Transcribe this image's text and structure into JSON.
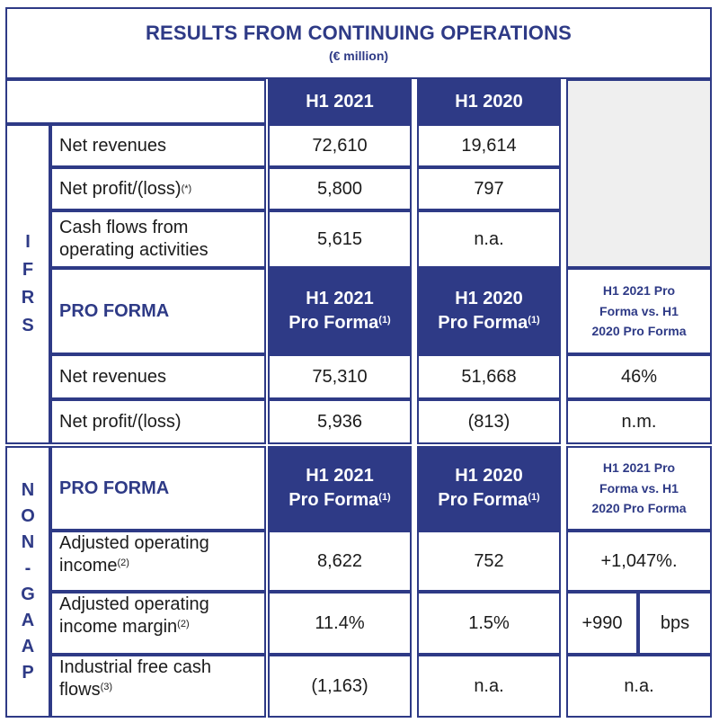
{
  "title": "RESULTS FROM CONTINUING OPERATIONS",
  "subtitle": "(€ million)",
  "headers": {
    "h1_2021": "H1 2021",
    "h1_2020": "H1 2020"
  },
  "side_labels": {
    "ifrs": [
      "I",
      "F",
      "R",
      "S"
    ],
    "nongaap": [
      "N",
      "O",
      "N",
      "-",
      "G",
      "A",
      "A",
      "P"
    ]
  },
  "ifrs_rows": [
    {
      "label": "Net revenues",
      "note": "",
      "v2021": "72,610",
      "v2020": "19,614"
    },
    {
      "label": "Net profit/(loss)",
      "note": "(*)",
      "v2021": "5,800",
      "v2020": "797"
    },
    {
      "label": "Cash flows from operating activities",
      "note": "",
      "v2021": "5,615",
      "v2020": "n.a."
    }
  ],
  "pro_forma": {
    "label": "PRO FORMA",
    "col2021_line1": "H1 2021",
    "col2021_line2": "Pro Forma",
    "col2020_line1": "H1 2020",
    "col2020_line2": "Pro Forma",
    "note": "(1)",
    "compare": [
      "H1 2021 Pro",
      "Forma vs. H1",
      "2020 Pro Forma"
    ]
  },
  "ifrs_pf_rows": [
    {
      "label": "Net revenues",
      "v2021": "75,310",
      "v2020": "51,668",
      "cmp": "46%"
    },
    {
      "label": "Net profit/(loss)",
      "v2021": "5,936",
      "v2020": "(813)",
      "cmp": "n.m."
    }
  ],
  "nongaap_rows": [
    {
      "label_line1": "Adjusted operating",
      "label_line2": "income",
      "note": "(2)",
      "v2021": "8,622",
      "v2020": "752",
      "cmp": "+1,047%."
    },
    {
      "label_line1": "Adjusted operating",
      "label_line2": "income margin",
      "note": "(2)",
      "v2021": "11.4%",
      "v2020": "1.5%",
      "cmp_value": "+990",
      "cmp_unit": "bps"
    },
    {
      "label_line1": "Industrial free cash",
      "label_line2": "flows",
      "note": "(3)",
      "v2021": "(1,163)",
      "v2020": "n.a.",
      "cmp": "n.a."
    }
  ]
}
